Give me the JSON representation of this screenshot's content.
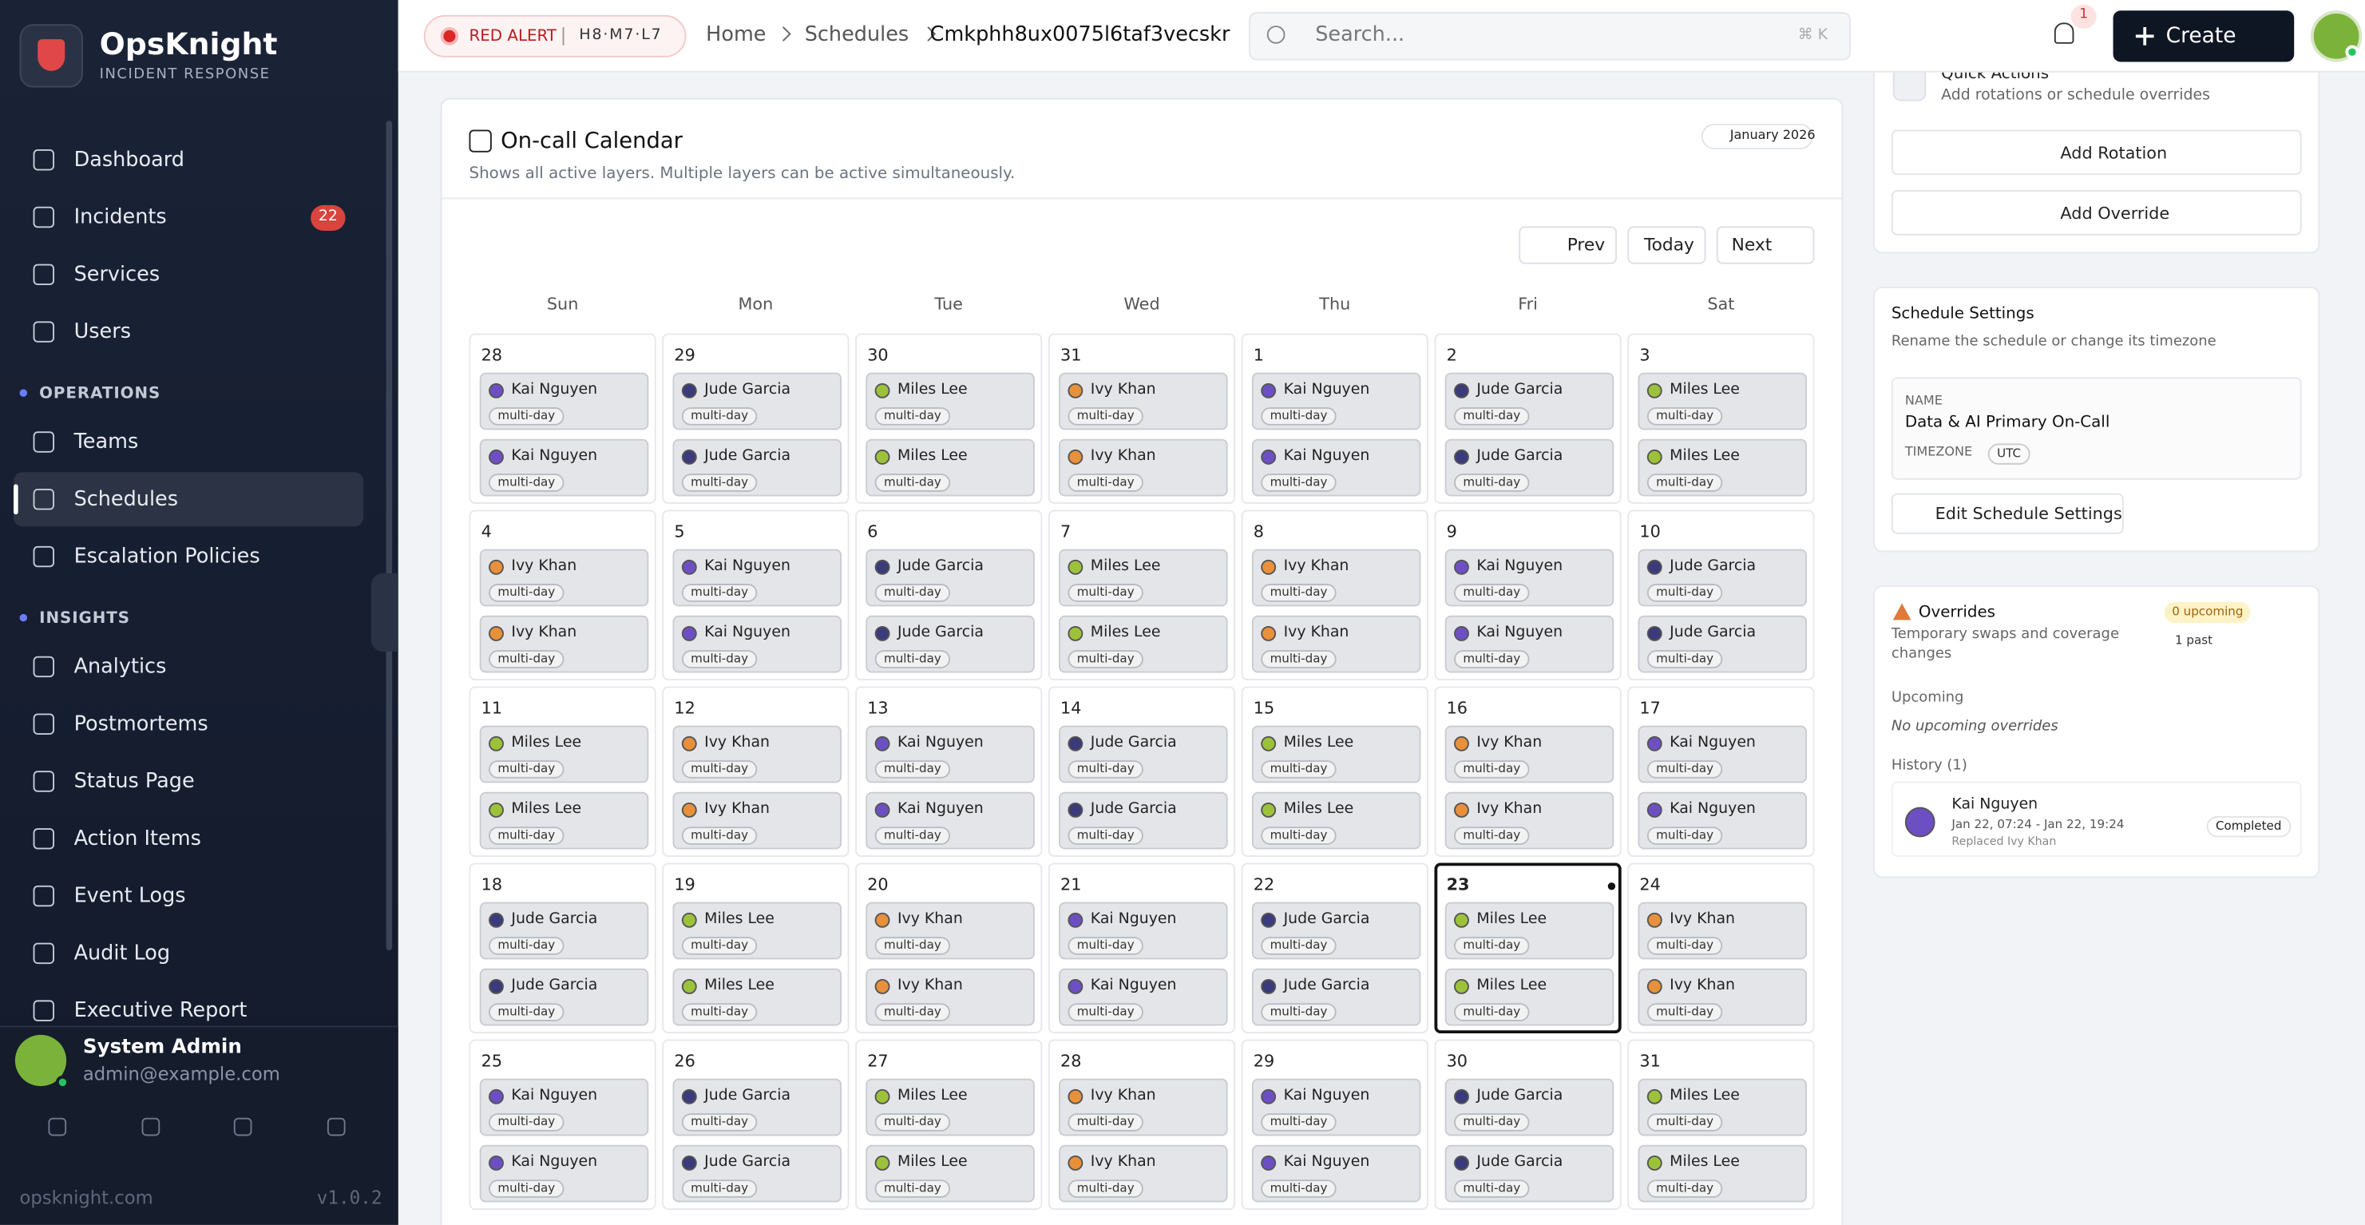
{
  "brand": {
    "name": "OpsKnight",
    "tagline": "INCIDENT RESPONSE"
  },
  "nav": {
    "main": [
      {
        "label": "Dashboard"
      },
      {
        "label": "Incidents",
        "badge": "22"
      },
      {
        "label": "Services"
      },
      {
        "label": "Users"
      }
    ],
    "sections": [
      {
        "title": "OPERATIONS",
        "items": [
          "Teams",
          "Schedules",
          "Escalation Policies"
        ]
      },
      {
        "title": "INSIGHTS",
        "items": [
          "Analytics",
          "Postmortems",
          "Status Page",
          "Action Items",
          "Event Logs",
          "Audit Log",
          "Executive Report"
        ]
      }
    ]
  },
  "user": {
    "name": "System Admin",
    "email": "admin@example.com"
  },
  "footer": {
    "domain": "opsknight.com",
    "version": "v1.0.2"
  },
  "header": {
    "alert": "RED ALERT",
    "alert_code": "H8·M7·L7",
    "breadcrumbs": [
      "Home",
      "Schedules",
      "Cmkphh8ux0075l6taf3vecskr"
    ],
    "search_placeholder": "Search...",
    "shortcut": "⌘ K",
    "notifications": "1",
    "create": "Create"
  },
  "calendar": {
    "title": "On-call Calendar",
    "subtitle": "Shows all active layers. Multiple layers can be active simultaneously.",
    "month": "January 2026",
    "prev": "Prev",
    "today": "Today",
    "next": "Next",
    "weekdays": [
      "Sun",
      "Mon",
      "Tue",
      "Wed",
      "Thu",
      "Fri",
      "Sat"
    ],
    "days": [
      {
        "day": 28,
        "shifts": [
          {
            "name": "Kai Nguyen",
            "tag": "multi-day",
            "color": "#6d4fc4"
          },
          {
            "name": "Kai Nguyen",
            "tag": "multi-day",
            "color": "#6d4fc4"
          }
        ]
      },
      {
        "day": 29,
        "shifts": [
          {
            "name": "Jude Garcia",
            "tag": "multi-day",
            "color": "#3b3a7a"
          },
          {
            "name": "Jude Garcia",
            "tag": "multi-day",
            "color": "#3b3a7a"
          }
        ]
      },
      {
        "day": 30,
        "shifts": [
          {
            "name": "Miles Lee",
            "tag": "multi-day",
            "color": "#9cc23a"
          },
          {
            "name": "Miles Lee",
            "tag": "multi-day",
            "color": "#9cc23a"
          }
        ]
      },
      {
        "day": 31,
        "shifts": [
          {
            "name": "Ivy Khan",
            "tag": "multi-day",
            "color": "#e8903a"
          },
          {
            "name": "Ivy Khan",
            "tag": "multi-day",
            "color": "#e8903a"
          }
        ]
      },
      {
        "day": 1,
        "shifts": [
          {
            "name": "Kai Nguyen",
            "tag": "multi-day",
            "color": "#6d4fc4"
          },
          {
            "name": "Kai Nguyen",
            "tag": "multi-day",
            "color": "#6d4fc4"
          }
        ]
      },
      {
        "day": 2,
        "shifts": [
          {
            "name": "Jude Garcia",
            "tag": "multi-day",
            "color": "#3b3a7a"
          },
          {
            "name": "Jude Garcia",
            "tag": "multi-day",
            "color": "#3b3a7a"
          }
        ]
      },
      {
        "day": 3,
        "shifts": [
          {
            "name": "Miles Lee",
            "tag": "multi-day",
            "color": "#9cc23a"
          },
          {
            "name": "Miles Lee",
            "tag": "multi-day",
            "color": "#9cc23a"
          }
        ]
      },
      {
        "day": 4,
        "shifts": [
          {
            "name": "Ivy Khan",
            "tag": "multi-day",
            "color": "#e8903a"
          },
          {
            "name": "Ivy Khan",
            "tag": "multi-day",
            "color": "#e8903a"
          }
        ]
      },
      {
        "day": 5,
        "shifts": [
          {
            "name": "Kai Nguyen",
            "tag": "multi-day",
            "color": "#6d4fc4"
          },
          {
            "name": "Kai Nguyen",
            "tag": "multi-day",
            "color": "#6d4fc4"
          }
        ]
      },
      {
        "day": 6,
        "shifts": [
          {
            "name": "Jude Garcia",
            "tag": "multi-day",
            "color": "#3b3a7a"
          },
          {
            "name": "Jude Garcia",
            "tag": "multi-day",
            "color": "#3b3a7a"
          }
        ]
      },
      {
        "day": 7,
        "shifts": [
          {
            "name": "Miles Lee",
            "tag": "multi-day",
            "color": "#9cc23a"
          },
          {
            "name": "Miles Lee",
            "tag": "multi-day",
            "color": "#9cc23a"
          }
        ]
      },
      {
        "day": 8,
        "shifts": [
          {
            "name": "Ivy Khan",
            "tag": "multi-day",
            "color": "#e8903a"
          },
          {
            "name": "Ivy Khan",
            "tag": "multi-day",
            "color": "#e8903a"
          }
        ]
      },
      {
        "day": 9,
        "shifts": [
          {
            "name": "Kai Nguyen",
            "tag": "multi-day",
            "color": "#6d4fc4"
          },
          {
            "name": "Kai Nguyen",
            "tag": "multi-day",
            "color": "#6d4fc4"
          }
        ]
      },
      {
        "day": 10,
        "shifts": [
          {
            "name": "Jude Garcia",
            "tag": "multi-day",
            "color": "#3b3a7a"
          },
          {
            "name": "Jude Garcia",
            "tag": "multi-day",
            "color": "#3b3a7a"
          }
        ]
      },
      {
        "day": 11,
        "shifts": [
          {
            "name": "Miles Lee",
            "tag": "multi-day",
            "color": "#9cc23a"
          },
          {
            "name": "Miles Lee",
            "tag": "multi-day",
            "color": "#9cc23a"
          }
        ]
      },
      {
        "day": 12,
        "shifts": [
          {
            "name": "Ivy Khan",
            "tag": "multi-day",
            "color": "#e8903a"
          },
          {
            "name": "Ivy Khan",
            "tag": "multi-day",
            "color": "#e8903a"
          }
        ]
      },
      {
        "day": 13,
        "shifts": [
          {
            "name": "Kai Nguyen",
            "tag": "multi-day",
            "color": "#6d4fc4"
          },
          {
            "name": "Kai Nguyen",
            "tag": "multi-day",
            "color": "#6d4fc4"
          }
        ]
      },
      {
        "day": 14,
        "shifts": [
          {
            "name": "Jude Garcia",
            "tag": "multi-day",
            "color": "#3b3a7a"
          },
          {
            "name": "Jude Garcia",
            "tag": "multi-day",
            "color": "#3b3a7a"
          }
        ]
      },
      {
        "day": 15,
        "shifts": [
          {
            "name": "Miles Lee",
            "tag": "multi-day",
            "color": "#9cc23a"
          },
          {
            "name": "Miles Lee",
            "tag": "multi-day",
            "color": "#9cc23a"
          }
        ]
      },
      {
        "day": 16,
        "shifts": [
          {
            "name": "Ivy Khan",
            "tag": "multi-day",
            "color": "#e8903a"
          },
          {
            "name": "Ivy Khan",
            "tag": "multi-day",
            "color": "#e8903a"
          }
        ]
      },
      {
        "day": 17,
        "shifts": [
          {
            "name": "Kai Nguyen",
            "tag": "multi-day",
            "color": "#6d4fc4"
          },
          {
            "name": "Kai Nguyen",
            "tag": "multi-day",
            "color": "#6d4fc4"
          }
        ]
      },
      {
        "day": 18,
        "shifts": [
          {
            "name": "Jude Garcia",
            "tag": "multi-day",
            "color": "#3b3a7a"
          },
          {
            "name": "Jude Garcia",
            "tag": "multi-day",
            "color": "#3b3a7a"
          }
        ]
      },
      {
        "day": 19,
        "shifts": [
          {
            "name": "Miles Lee",
            "tag": "multi-day",
            "color": "#9cc23a"
          },
          {
            "name": "Miles Lee",
            "tag": "multi-day",
            "color": "#9cc23a"
          }
        ]
      },
      {
        "day": 20,
        "shifts": [
          {
            "name": "Ivy Khan",
            "tag": "multi-day",
            "color": "#e8903a"
          },
          {
            "name": "Ivy Khan",
            "tag": "multi-day",
            "color": "#e8903a"
          }
        ]
      },
      {
        "day": 21,
        "shifts": [
          {
            "name": "Kai Nguyen",
            "tag": "multi-day",
            "color": "#6d4fc4"
          },
          {
            "name": "Kai Nguyen",
            "tag": "multi-day",
            "color": "#6d4fc4"
          }
        ]
      },
      {
        "day": 22,
        "shifts": [
          {
            "name": "Jude Garcia",
            "tag": "multi-day",
            "color": "#3b3a7a"
          },
          {
            "name": "Jude Garcia",
            "tag": "multi-day",
            "color": "#3b3a7a"
          }
        ]
      },
      {
        "day": 23,
        "today": true,
        "shifts": [
          {
            "name": "Miles Lee",
            "tag": "multi-day",
            "color": "#9cc23a"
          },
          {
            "name": "Miles Lee",
            "tag": "multi-day",
            "color": "#9cc23a"
          }
        ]
      },
      {
        "day": 24,
        "shifts": [
          {
            "name": "Ivy Khan",
            "tag": "multi-day",
            "color": "#e8903a"
          },
          {
            "name": "Ivy Khan",
            "tag": "multi-day",
            "color": "#e8903a"
          }
        ]
      },
      {
        "day": 25,
        "shifts": [
          {
            "name": "Kai Nguyen",
            "tag": "multi-day",
            "color": "#6d4fc4"
          },
          {
            "name": "Kai Nguyen",
            "tag": "multi-day",
            "color": "#6d4fc4"
          }
        ]
      },
      {
        "day": 26,
        "shifts": [
          {
            "name": "Jude Garcia",
            "tag": "multi-day",
            "color": "#3b3a7a"
          },
          {
            "name": "Jude Garcia",
            "tag": "multi-day",
            "color": "#3b3a7a"
          }
        ]
      },
      {
        "day": 27,
        "shifts": [
          {
            "name": "Miles Lee",
            "tag": "multi-day",
            "color": "#9cc23a"
          },
          {
            "name": "Miles Lee",
            "tag": "multi-day",
            "color": "#9cc23a"
          }
        ]
      },
      {
        "day": 28,
        "shifts": [
          {
            "name": "Ivy Khan",
            "tag": "multi-day",
            "color": "#e8903a"
          },
          {
            "name": "Ivy Khan",
            "tag": "multi-day",
            "color": "#e8903a"
          }
        ]
      },
      {
        "day": 29,
        "shifts": [
          {
            "name": "Kai Nguyen",
            "tag": "multi-day",
            "color": "#6d4fc4"
          },
          {
            "name": "Kai Nguyen",
            "tag": "multi-day",
            "color": "#6d4fc4"
          }
        ]
      },
      {
        "day": 30,
        "shifts": [
          {
            "name": "Jude Garcia",
            "tag": "multi-day",
            "color": "#3b3a7a"
          },
          {
            "name": "Jude Garcia",
            "tag": "multi-day",
            "color": "#3b3a7a"
          }
        ]
      },
      {
        "day": 31,
        "shifts": [
          {
            "name": "Miles Lee",
            "tag": "multi-day",
            "color": "#9cc23a"
          },
          {
            "name": "Miles Lee",
            "tag": "multi-day",
            "color": "#9cc23a"
          }
        ]
      }
    ]
  },
  "quick_actions": {
    "title": "Quick Actions",
    "subtitle": "Add rotations or schedule overrides",
    "add_rotation": "Add Rotation",
    "add_override": "Add Override"
  },
  "settings": {
    "title": "Schedule Settings",
    "subtitle": "Rename the schedule or change its timezone",
    "name_label": "NAME",
    "name": "Data & AI Primary On-Call",
    "timezone_label": "TIMEZONE",
    "timezone": "UTC",
    "edit": "Edit Schedule Settings"
  },
  "overrides": {
    "title": "Overrides",
    "subtitle": "Temporary swaps and coverage changes",
    "upcoming_badge": "0 upcoming",
    "past_badge": "1 past",
    "upcoming_label": "Upcoming",
    "upcoming_empty": "No upcoming overrides",
    "history_label": "History (1)",
    "history": [
      {
        "name": "Kai Nguyen",
        "time": "Jan 22, 07:24 - Jan 22, 19:24",
        "note": "Replaced Ivy Khan",
        "status": "Completed"
      }
    ]
  }
}
